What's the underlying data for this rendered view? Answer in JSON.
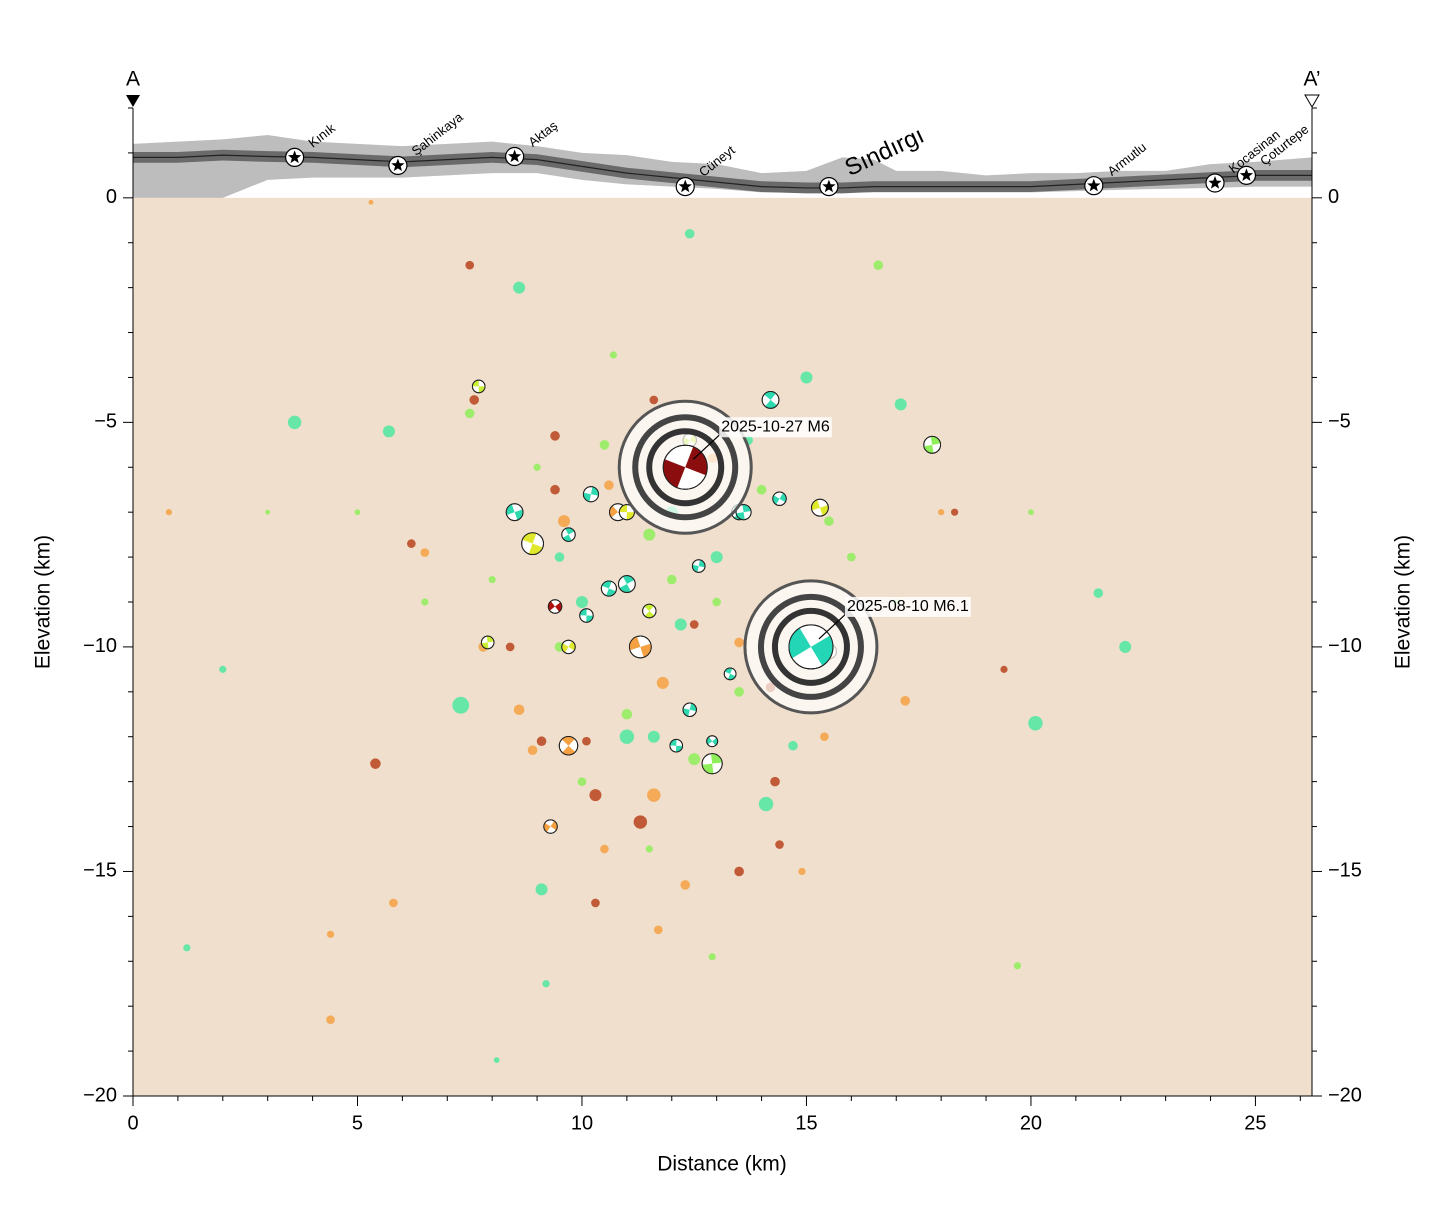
{
  "chart_data": {
    "type": "scatter",
    "profile_start": "A",
    "profile_end": "A’",
    "xlabel": "Distance (km)",
    "ylabel": "Elevation (km)",
    "xlim": [
      0,
      26.26
    ],
    "ylim": [
      -20,
      2
    ],
    "xticks": [
      0,
      5,
      10,
      15,
      20,
      25
    ],
    "yticks": [
      {
        "value": -20,
        "label": "−20"
      },
      {
        "value": -15,
        "label": "−15"
      },
      {
        "value": -10,
        "label": "−10"
      },
      {
        "value": -5,
        "label": "−5"
      },
      0
    ],
    "xticks_minor": [
      1,
      2,
      3,
      4,
      6,
      7,
      8,
      9,
      11,
      12,
      13,
      14,
      16,
      17,
      18,
      19,
      21,
      22,
      23,
      24,
      26
    ],
    "yticks_minor": [
      -19,
      -18,
      -17,
      -16,
      -14,
      -13,
      -12,
      -11,
      -9,
      -8,
      -7,
      -6,
      -4,
      -3,
      -2,
      -1,
      1,
      2
    ],
    "background_color": "#f0dfcc",
    "topography": {
      "x": [
        0,
        1,
        2,
        3,
        4,
        5,
        6,
        7,
        8,
        9,
        10,
        11,
        12,
        13,
        14,
        15,
        15.8,
        16.5,
        17,
        18,
        19,
        20,
        21,
        22,
        23,
        24,
        25,
        26.26
      ],
      "elevation": [
        0.9,
        0.9,
        0.95,
        0.92,
        0.9,
        0.85,
        0.8,
        0.85,
        0.9,
        0.85,
        0.7,
        0.55,
        0.45,
        0.35,
        0.25,
        0.22,
        0.22,
        0.25,
        0.25,
        0.25,
        0.25,
        0.25,
        0.3,
        0.35,
        0.4,
        0.45,
        0.5,
        0.5
      ],
      "elevation_max": [
        1.2,
        1.25,
        1.3,
        1.4,
        1.25,
        1.2,
        1.15,
        1.2,
        1.25,
        1.15,
        1.0,
        0.95,
        0.8,
        0.75,
        0.55,
        0.6,
        0.9,
        0.85,
        0.6,
        0.6,
        0.5,
        0.55,
        0.55,
        0.6,
        0.6,
        0.75,
        0.8,
        0.9
      ],
      "elevation_min": [
        0,
        0,
        0,
        0.4,
        0.45,
        0.45,
        0.45,
        0.5,
        0.55,
        0.55,
        0.4,
        0.3,
        0.25,
        0.2,
        0.12,
        0.12,
        0.12,
        0.12,
        0.12,
        0.12,
        0.12,
        0.12,
        0.15,
        0.18,
        0.2,
        0.22,
        0.25,
        0.25
      ]
    },
    "towns": [
      {
        "name": "Kınık",
        "x": 3.6,
        "y": 0.9
      },
      {
        "name": "Şahinkaya",
        "x": 5.9,
        "y": 0.72
      },
      {
        "name": "Aktaş",
        "x": 8.5,
        "y": 0.92
      },
      {
        "name": "Cüneyt",
        "x": 12.3,
        "y": 0.25
      },
      {
        "name": "Sındırgı",
        "x": 15.5,
        "y": 0.25
      },
      {
        "name": "Armutlu",
        "x": 21.4,
        "y": 0.27
      },
      {
        "name": "Kocasinan",
        "x": 24.1,
        "y": 0.33
      },
      {
        "name": "Çoturtepe",
        "x": 24.8,
        "y": 0.5
      }
    ],
    "series": [
      {
        "color": "#8fef5a",
        "x": [
          7.5,
          9,
          10.5,
          11.5,
          12,
          13,
          9.5,
          11,
          12.5,
          14,
          15.5,
          16,
          8,
          10,
          11.5,
          13.5,
          17,
          6.5,
          12.9,
          19.7,
          16.6,
          10.7,
          5,
          20,
          3
        ],
        "values": [
          -4.8,
          -6,
          -5.5,
          -7.5,
          -8.5,
          -9,
          -10,
          -11.5,
          -12.5,
          -6.5,
          -7.2,
          -8,
          -8.5,
          -13,
          -14.5,
          -11,
          -9,
          -9,
          -16.9,
          -17.1,
          -1.5,
          -3.5,
          -7,
          -7,
          -7
        ],
        "sizes": [
          2,
          1.5,
          2,
          2.5,
          2,
          1.8,
          2,
          2.2,
          2.5,
          2,
          2,
          1.8,
          1.5,
          1.8,
          1.5,
          2,
          1.5,
          1.5,
          1.5,
          1.5,
          2,
          1.5,
          1.2,
          1.2,
          1
        ]
      },
      {
        "color": "#4de8a0",
        "x": [
          3.6,
          8.6,
          12.4,
          7.3,
          20.1,
          22.1,
          21.5,
          14.1,
          9.1,
          11,
          10,
          12,
          13,
          9.5,
          15,
          17.1,
          5.7,
          12.2,
          11.6,
          14.7,
          9.2,
          8.1,
          2,
          1.2,
          13.7
        ],
        "values": [
          -5,
          -2,
          -0.8,
          -11.3,
          -11.7,
          -10,
          -8.8,
          -13.5,
          -15.4,
          -12,
          -9,
          -7,
          -8,
          -8,
          -4,
          -4.6,
          -5.2,
          -9.5,
          -12,
          -12.2,
          -17.5,
          -19.2,
          -10.5,
          -16.7,
          -5.4
        ],
        "sizes": [
          2.8,
          2.5,
          2,
          3.5,
          3,
          2.5,
          2,
          3,
          2.5,
          3,
          2.5,
          2.5,
          2.5,
          2,
          2.5,
          2.5,
          2.5,
          2.5,
          2.5,
          2,
          1.5,
          1.2,
          1.5,
          1.5,
          2
        ]
      },
      {
        "color": "#f5a142",
        "x": [
          4.4,
          5.8,
          4.4,
          11.6,
          11.7,
          8.9,
          8.6,
          10.5,
          12.3,
          17.2,
          11.8,
          7.8,
          13.5,
          9.6,
          10.6,
          6.5,
          14.9,
          12.9,
          15.4,
          0.8,
          18,
          5.3
        ],
        "values": [
          -18.3,
          -15.7,
          -16.4,
          -13.3,
          -16.3,
          -12.3,
          -11.4,
          -14.5,
          -15.3,
          -11.2,
          -10.8,
          -10,
          -9.9,
          -7.2,
          -6.4,
          -7.9,
          -15,
          -5.8,
          -12,
          -7,
          -7,
          -0.1
        ],
        "sizes": [
          1.8,
          1.8,
          1.5,
          2.8,
          1.8,
          2,
          2.2,
          1.8,
          2,
          2,
          2.5,
          2,
          2,
          2.5,
          2,
          1.8,
          1.5,
          2,
          1.8,
          1.3,
          1.3,
          1
        ]
      },
      {
        "color": "#b8431c",
        "x": [
          7.5,
          7.6,
          9.4,
          11.3,
          10.3,
          13.5,
          14.3,
          14.4,
          10.3,
          5.4,
          9.1,
          10.1,
          12.5,
          8.4,
          9.4,
          6.2,
          19.4,
          18.3,
          11.6,
          14.2
        ],
        "values": [
          -1.5,
          -4.5,
          -5.3,
          -13.9,
          -13.3,
          -15,
          -13,
          -14.4,
          -15.7,
          -12.6,
          -12.1,
          -12.1,
          -9.5,
          -10,
          -6.5,
          -7.7,
          -10.5,
          -7,
          -4.5,
          -10.9
        ],
        "sizes": [
          1.8,
          2,
          2,
          2.8,
          2.5,
          2,
          2,
          1.8,
          1.8,
          2.2,
          2,
          1.8,
          1.8,
          1.8,
          2,
          1.8,
          1.5,
          1.5,
          1.8,
          2
        ]
      }
    ],
    "mechanisms": {
      "x": [
        7.7,
        14.2,
        17.8,
        12.4,
        8.5,
        8.9,
        9.7,
        10.2,
        10.8,
        11,
        13.5,
        13.6,
        14.4,
        15.3,
        10.6,
        11,
        12.6,
        9.4,
        10.1,
        11.5,
        7.9,
        9.7,
        11.3,
        13.3,
        15.5,
        12.4,
        12.9,
        12.1,
        9.7,
        12.9,
        9.3
      ],
      "values": [
        -4.2,
        -4.5,
        -5.5,
        -5.4,
        -7,
        -7.7,
        -7.5,
        -6.6,
        -7,
        -7,
        -7,
        -7,
        -6.7,
        -6.9,
        -8.7,
        -8.6,
        -8.2,
        -9.1,
        -9.3,
        -9.2,
        -9.9,
        -10,
        -10,
        -10.6,
        -10.1,
        -11.4,
        -12.1,
        -12.2,
        -12.2,
        -12.6,
        -14
      ],
      "sizes": [
        1.5,
        2,
        2,
        1.6,
        2,
        2.6,
        1.6,
        1.8,
        2,
        1.8,
        1.8,
        1.8,
        1.6,
        2,
        1.8,
        2,
        1.5,
        1.6,
        1.6,
        1.6,
        1.5,
        1.6,
        2.6,
        1.4,
        1.8,
        1.6,
        1.3,
        1.5,
        2.2,
        2.4,
        1.6
      ],
      "colors": [
        "#c8ef33",
        "#2fd9b0",
        "#8fef5a",
        "#c8ef33",
        "#2fd9b0",
        "#dfe82a",
        "#2fd9b0",
        "#2fd9b0",
        "#f5a142",
        "#dfe82a",
        "#2fd9b0",
        "#2fd9b0",
        "#2fd9b0",
        "#dfe82a",
        "#2fd9b0",
        "#2fd9b0",
        "#2fd9b0",
        "#b01010",
        "#2fd9b0",
        "#c8ef33",
        "#c8ef33",
        "#dfe82a",
        "#f5a142",
        "#2fd9b0",
        "#c8ef33",
        "#2fd9b0",
        "#2fd9b0",
        "#2fd9b0",
        "#f5a142",
        "#8fef5a",
        "#f5a142"
      ]
    },
    "mainshocks": [
      {
        "label": "2025-10-27 M6",
        "x": 12.3,
        "y": -6.0,
        "color": "#8b0d0d"
      },
      {
        "label": "2025-08-10 M6.1",
        "x": 15.1,
        "y": -10.0,
        "color": "#22d6b6"
      }
    ]
  }
}
